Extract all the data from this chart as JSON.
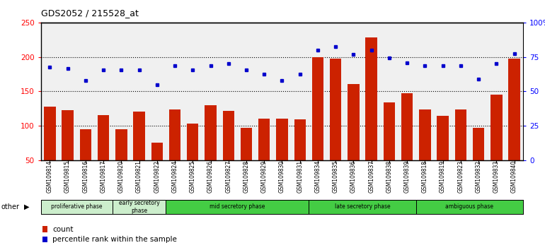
{
  "title": "GDS2052 / 215528_at",
  "samples": [
    "GSM109814",
    "GSM109815",
    "GSM109816",
    "GSM109817",
    "GSM109820",
    "GSM109821",
    "GSM109822",
    "GSM109824",
    "GSM109825",
    "GSM109826",
    "GSM109827",
    "GSM109828",
    "GSM109829",
    "GSM109830",
    "GSM109831",
    "GSM109834",
    "GSM109835",
    "GSM109836",
    "GSM109837",
    "GSM109838",
    "GSM109839",
    "GSM109818",
    "GSM109819",
    "GSM109823",
    "GSM109832",
    "GSM109833",
    "GSM109840"
  ],
  "counts": [
    128,
    122,
    95,
    115,
    95,
    120,
    75,
    124,
    103,
    130,
    121,
    97,
    110,
    110,
    109,
    200,
    197,
    161,
    228,
    134,
    147,
    124,
    114,
    124,
    97,
    145,
    197
  ],
  "percentile_dots": [
    185,
    183,
    166,
    181,
    181,
    181,
    159,
    187,
    181,
    187,
    190,
    181,
    175,
    166,
    175,
    210,
    215,
    204,
    210,
    198,
    191,
    187,
    187,
    187,
    168,
    190,
    205
  ],
  "ylim_left": [
    50,
    250
  ],
  "yticks_left": [
    50,
    100,
    150,
    200,
    250
  ],
  "yticks_right": [
    0,
    25,
    50,
    75,
    100
  ],
  "ytick_labels_right": [
    "0",
    "25",
    "50",
    "75",
    "100%"
  ],
  "grid_values": [
    100,
    150,
    200
  ],
  "bar_color": "#cc2200",
  "dot_color": "#0000cc",
  "phase_info": [
    {
      "name": "proliferative phase",
      "start": 0,
      "end": 4,
      "color": "#cceecc"
    },
    {
      "name": "early secretory\nphase",
      "start": 4,
      "end": 7,
      "color": "#cceecc"
    },
    {
      "name": "mid secretory phase",
      "start": 7,
      "end": 15,
      "color": "#44cc44"
    },
    {
      "name": "late secretory phase",
      "start": 15,
      "end": 21,
      "color": "#44cc44"
    },
    {
      "name": "ambiguous phase",
      "start": 21,
      "end": 27,
      "color": "#44cc44"
    }
  ],
  "background_color": "#ffffff"
}
